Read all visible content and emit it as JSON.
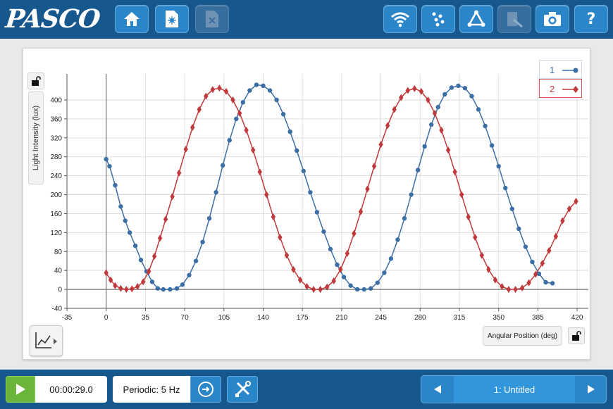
{
  "header": {
    "logo": "PASCO",
    "buttons": [
      "home-icon",
      "experiment-file-icon",
      "close-file-icon",
      "wifi-sensors-icon",
      "data-points-icon",
      "data-analysis-icon",
      "journal-icon",
      "snapshot-camera-icon",
      "help-icon"
    ],
    "help_label": "?"
  },
  "colors": {
    "series1": "#3a6ea5",
    "series2": "#c0393b",
    "brand": "#16578e",
    "button": "#2a86c9",
    "start": "#6bb53c"
  },
  "graph": {
    "ylabel": "Light Intensity (lux)",
    "xlabel": "Angular Position (deg)"
  },
  "chart_data": {
    "type": "line",
    "xlabel": "Angular Position (deg)",
    "ylabel": "Light Intensity (lux)",
    "xlim": [
      -35,
      430
    ],
    "ylim": [
      -40,
      455
    ],
    "xticks": [
      -35,
      0,
      35,
      70,
      105,
      140,
      175,
      210,
      245,
      280,
      315,
      350,
      385,
      420
    ],
    "yticks": [
      -40,
      0,
      40,
      80,
      120,
      160,
      200,
      240,
      280,
      320,
      360,
      400
    ],
    "grid": true,
    "legend": "top-right",
    "series": [
      {
        "name": "1",
        "marker": "circle",
        "color": "#3a6ea5",
        "x": [
          0,
          3,
          8,
          13,
          17,
          21,
          26,
          31,
          36,
          41,
          46,
          51,
          57,
          63,
          68,
          74,
          80,
          86,
          92,
          98,
          104,
          110,
          116,
          122,
          128,
          134,
          140,
          146,
          152,
          158,
          164,
          170,
          176,
          182,
          188,
          194,
          200,
          206,
          212,
          218,
          224,
          230,
          236,
          242,
          248,
          254,
          260,
          266,
          272,
          278,
          284,
          290,
          296,
          302,
          308,
          314,
          320,
          326,
          332,
          338,
          344,
          350,
          356,
          362,
          368,
          374,
          380,
          386,
          392,
          398
        ],
        "y": [
          275,
          260,
          220,
          175,
          145,
          120,
          92,
          62,
          38,
          16,
          2,
          0,
          0,
          2,
          10,
          30,
          60,
          100,
          150,
          205,
          262,
          315,
          360,
          395,
          420,
          432,
          430,
          420,
          400,
          370,
          333,
          293,
          250,
          205,
          163,
          122,
          85,
          52,
          26,
          8,
          0,
          0,
          2,
          14,
          35,
          65,
          105,
          150,
          200,
          252,
          302,
          348,
          385,
          412,
          426,
          430,
          425,
          408,
          380,
          345,
          304,
          260,
          214,
          170,
          128,
          90,
          58,
          33,
          15,
          13
        ]
      },
      {
        "name": "2",
        "marker": "diamond",
        "color": "#c0393b",
        "x": [
          0,
          4,
          8,
          13,
          18,
          23,
          28,
          33,
          38,
          43,
          48,
          53,
          59,
          65,
          71,
          77,
          83,
          89,
          95,
          101,
          107,
          113,
          119,
          125,
          131,
          137,
          143,
          149,
          155,
          161,
          167,
          173,
          179,
          185,
          191,
          197,
          203,
          209,
          215,
          221,
          227,
          233,
          239,
          245,
          251,
          257,
          263,
          269,
          275,
          281,
          287,
          293,
          299,
          305,
          311,
          317,
          323,
          329,
          335,
          341,
          347,
          353,
          359,
          365,
          371,
          377,
          383,
          389,
          395,
          401,
          407,
          413,
          419
        ],
        "y": [
          35,
          20,
          8,
          2,
          0,
          1,
          6,
          16,
          38,
          70,
          108,
          148,
          196,
          246,
          296,
          342,
          380,
          408,
          422,
          425,
          418,
          400,
          372,
          336,
          294,
          248,
          200,
          153,
          110,
          72,
          42,
          20,
          6,
          0,
          0,
          5,
          18,
          42,
          76,
          118,
          164,
          212,
          260,
          306,
          346,
          380,
          405,
          420,
          424,
          418,
          400,
          372,
          336,
          294,
          248,
          200,
          153,
          110,
          72,
          42,
          20,
          6,
          0,
          0,
          3,
          14,
          32,
          55,
          82,
          112,
          145,
          170,
          186
        ]
      }
    ]
  },
  "footer": {
    "time": "00:00:29.0",
    "sample_rate": "Periodic: 5 Hz",
    "page_title": "1: Untitled"
  }
}
